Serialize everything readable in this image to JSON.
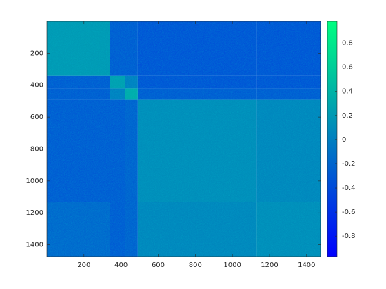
{
  "chart_data": {
    "type": "heatmap",
    "colormap": "winter",
    "edges": [
      0,
      340,
      420,
      490,
      1130,
      1475
    ],
    "values": [
      [
        0.2,
        -0.3,
        -0.3,
        -0.35,
        -0.35
      ],
      [
        -0.3,
        0.25,
        0.0,
        -0.35,
        -0.35
      ],
      [
        -0.3,
        0.0,
        0.35,
        -0.3,
        -0.3
      ],
      [
        -0.3,
        -0.3,
        -0.25,
        0.1,
        0.05
      ],
      [
        -0.2,
        -0.3,
        -0.25,
        0.05,
        0.1
      ]
    ],
    "xlim": [
      0,
      1475
    ],
    "ylim": [
      0,
      1475
    ],
    "y_reversed": true,
    "xticks": [
      200,
      400,
      600,
      800,
      1000,
      1200,
      1400
    ],
    "yticks": [
      200,
      400,
      600,
      800,
      1000,
      1200,
      1400
    ],
    "clim": [
      -0.97,
      0.98
    ],
    "cticks": [
      -0.8,
      -0.6,
      -0.4,
      -0.2,
      0,
      0.2,
      0.4,
      0.6,
      0.8
    ]
  }
}
